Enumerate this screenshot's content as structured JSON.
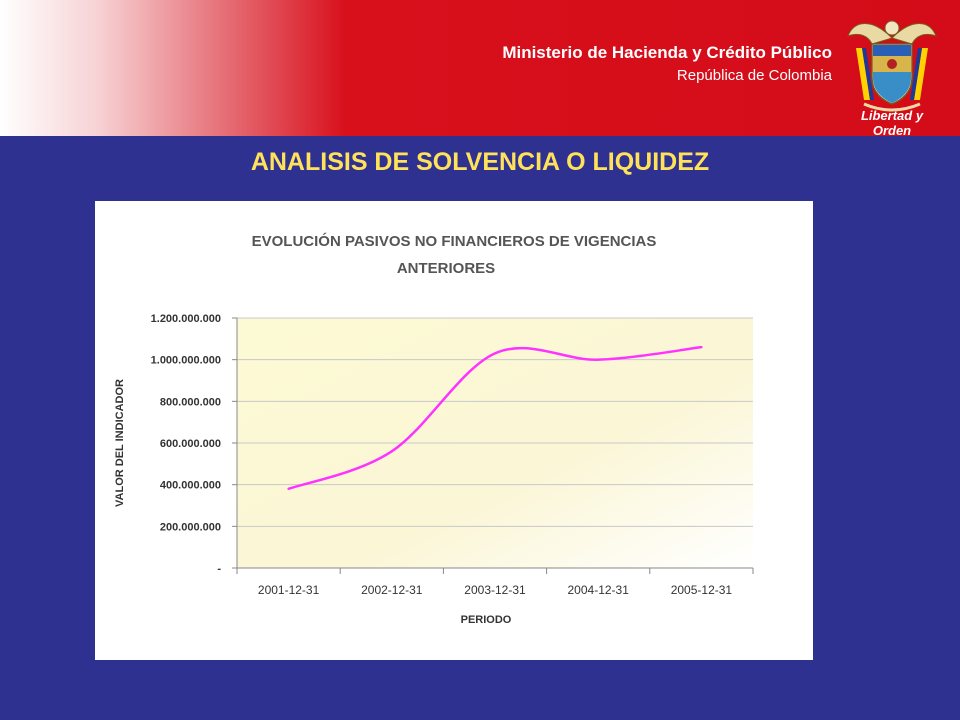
{
  "header": {
    "ministry_name": "Ministerio de Hacienda y Crédito Público",
    "country": "República de Colombia",
    "motto": "Libertad y Orden",
    "seal_icon": "colombia-coat-of-arms-icon"
  },
  "slide": {
    "title": "ANALISIS DE SOLVENCIA O LIQUIDEZ"
  },
  "colors": {
    "background": "#2f3191",
    "header_red": "#d40b18",
    "title_yellow": "#ffe25a",
    "line": "#ff33ff"
  },
  "chart_data": {
    "type": "line",
    "title_lines": [
      "EVOLUCIÓN PASIVOS NO FINANCIEROS DE VIGENCIAS",
      "ANTERIORES"
    ],
    "xlabel": "PERIODO",
    "ylabel": "VALOR DEL INDICADOR",
    "categories": [
      "2001-12-31",
      "2002-12-31",
      "2003-12-31",
      "2004-12-31",
      "2005-12-31"
    ],
    "y_ticks": [
      {
        "value": 0,
        "label": "-"
      },
      {
        "value": 200000000,
        "label": "200.000.000"
      },
      {
        "value": 400000000,
        "label": "400.000.000"
      },
      {
        "value": 600000000,
        "label": "600.000.000"
      },
      {
        "value": 800000000,
        "label": "800.000.000"
      },
      {
        "value": 1000000000,
        "label": "1.000.000.000"
      },
      {
        "value": 1200000000,
        "label": "1.200.000.000"
      }
    ],
    "ylim": [
      0,
      1200000000
    ],
    "grid": true,
    "legend": "none",
    "series": [
      {
        "values": [
          380000000,
          560000000,
          1030000000,
          1000000000,
          1060000000
        ]
      }
    ]
  }
}
